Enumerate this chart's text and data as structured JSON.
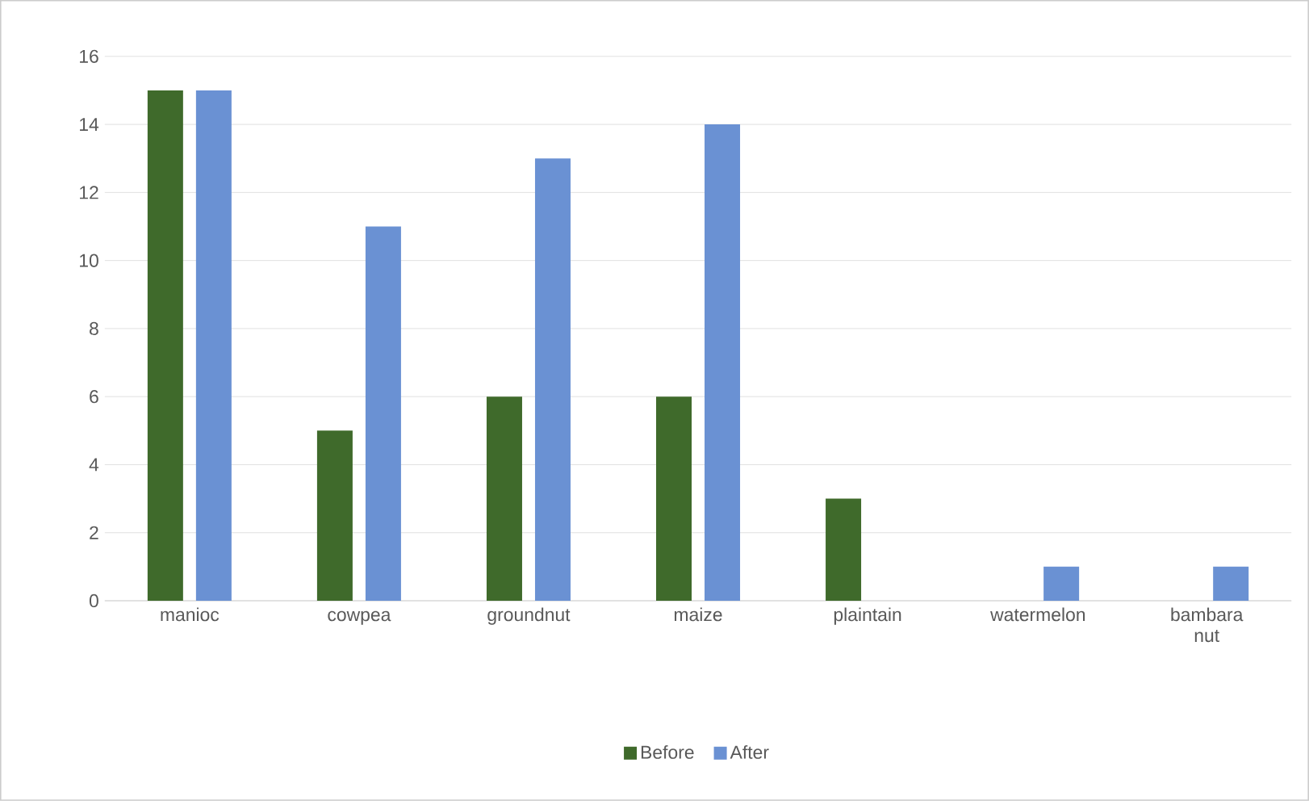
{
  "chart_data": {
    "type": "bar",
    "categories": [
      "manioc",
      "cowpea",
      "groundnut",
      "maize",
      "plaintain",
      "watermelon",
      "bambara nut"
    ],
    "series": [
      {
        "name": "Before",
        "color": "#3f6a2b",
        "values": [
          15,
          5,
          6,
          6,
          3,
          0,
          0
        ]
      },
      {
        "name": "After",
        "color": "#6a91d3",
        "values": [
          15,
          11,
          13,
          14,
          0,
          1,
          1
        ]
      }
    ],
    "ylim": [
      0,
      16
    ],
    "yticks": [
      0,
      2,
      4,
      6,
      8,
      10,
      12,
      14,
      16
    ],
    "grid": "y",
    "legend": "bottom"
  }
}
